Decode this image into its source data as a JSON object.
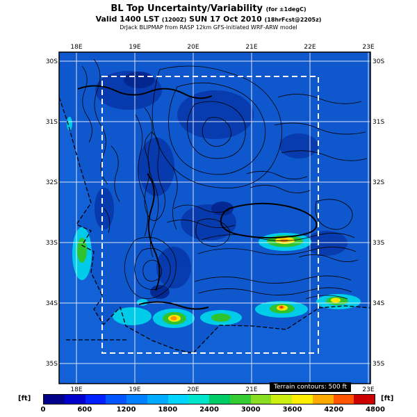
{
  "header": {
    "title": "BL Top Uncertainty/Variability",
    "title_note": "(for ±1degC)",
    "valid_line": {
      "prefix": "Valid 1400 LST",
      "zulu": "(1200Z)",
      "date": "SUN 17 Oct 2010",
      "fcst": "(18hrFcst@2205z)"
    },
    "model_line": "DrJack BLIPMAP from RASP 12km GFS-initiated WRF-ARW model"
  },
  "axes": {
    "lon_labels": [
      "18E",
      "19E",
      "20E",
      "21E",
      "22E",
      "23E"
    ],
    "lat_labels": [
      "30S",
      "31S",
      "32S",
      "33S",
      "34S",
      "35S"
    ]
  },
  "colorbar": {
    "unit_left": "[ft]",
    "unit_right": "[ft]",
    "ticks": [
      "0",
      "600",
      "1200",
      "1800",
      "2400",
      "3000",
      "3600",
      "4200",
      "4800"
    ],
    "values_ft": [
      0,
      600,
      1200,
      1800,
      2400,
      3000,
      3600,
      4200,
      4800
    ],
    "colors": [
      "#00008b",
      "#0000cd",
      "#0020ff",
      "#0055ff",
      "#0080ff",
      "#00aaff",
      "#00d4ff",
      "#00e6cc",
      "#00cc66",
      "#33cc33",
      "#88dd22",
      "#ccee11",
      "#ffee00",
      "#ffaa00",
      "#ff5500",
      "#cc0000"
    ],
    "note": "Terrain contours: 500 ft"
  },
  "map": {
    "ocean_color": "#1261d6",
    "land_color": "#0f57cc",
    "grid_color": "#ffffff",
    "contour_color": "#000000",
    "inner_domain_style": "white-dashed"
  }
}
